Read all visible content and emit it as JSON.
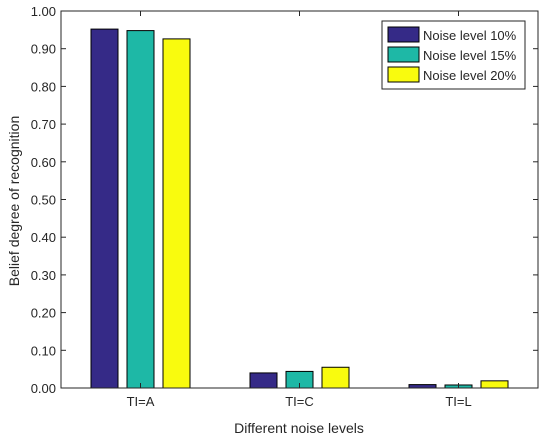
{
  "chart_data": {
    "type": "bar",
    "categories": [
      "TI=A",
      "TI=C",
      "TI=L"
    ],
    "series": [
      {
        "name": "Noise level 10%",
        "values": [
          0.952,
          0.04,
          0.009
        ],
        "color": "#352A87"
      },
      {
        "name": "Noise level 15%",
        "values": [
          0.948,
          0.044,
          0.008
        ],
        "color": "#1EB8A6"
      },
      {
        "name": "Noise level 20%",
        "values": [
          0.926,
          0.055,
          0.019
        ],
        "color": "#F9FB0E"
      }
    ],
    "title": "",
    "xlabel": "Different noise levels",
    "ylabel": "Belief degree of recognition",
    "ylim": [
      0,
      1
    ],
    "yticks": [
      "0.00",
      "0.10",
      "0.20",
      "0.30",
      "0.40",
      "0.50",
      "0.60",
      "0.70",
      "0.80",
      "0.90",
      "1.00"
    ],
    "grid": false,
    "legend_position": "top-right"
  }
}
